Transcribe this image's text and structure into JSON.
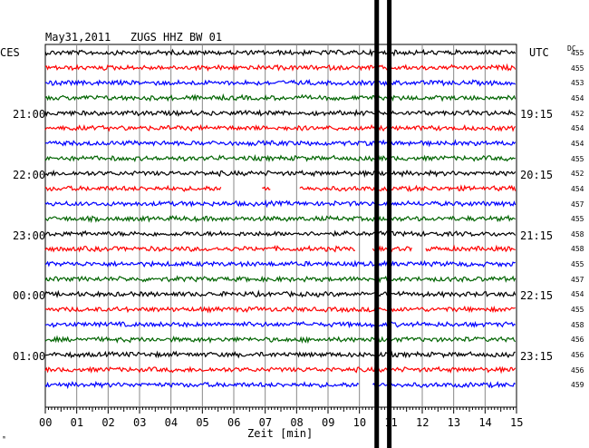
{
  "header": {
    "title": "May31,2011   ZUGS HHZ BW 01",
    "left_zone": "CES",
    "right_zone": "UTC",
    "dc_label": "DC"
  },
  "left_time_labels": [
    "21:00",
    "22:00",
    "23:00",
    "00:00",
    "01:00"
  ],
  "right_time_labels": [
    "19:15",
    "20:15",
    "21:15",
    "22:15",
    "23:15"
  ],
  "dc_values": [
    "455",
    "455",
    "453",
    "454",
    "452",
    "454",
    "454",
    "455",
    "452",
    "454",
    "457",
    "455",
    "458",
    "458",
    "455",
    "457",
    "454",
    "455",
    "458",
    "456",
    "456",
    "456",
    "459"
  ],
  "trace_colors": [
    "#000000",
    "#ff0000",
    "#0000ff",
    "#006400"
  ],
  "x_axis": {
    "ticks": [
      "00",
      "01",
      "02",
      "03",
      "04",
      "05",
      "06",
      "07",
      "08",
      "09",
      "10",
      "11",
      "12",
      "13",
      "14",
      "15"
    ],
    "label": "Zeit [min]"
  },
  "corner_mark": "ᵐ",
  "chart_data": {
    "type": "line",
    "title": "May31,2011   ZUGS HHZ BW 01",
    "xlabel": "Zeit [min]",
    "xlim": [
      0,
      15
    ],
    "traces": 23,
    "gaps_in_minutes": [
      {
        "trace": 9,
        "from": 5.6,
        "to": 6.9
      },
      {
        "trace": 9,
        "from": 7.2,
        "to": 8.1
      },
      {
        "trace": 13,
        "from": 9.9,
        "to": 10.4
      },
      {
        "trace": 13,
        "from": 11.7,
        "to": 12.1
      },
      {
        "trace": 22,
        "from": 10.0,
        "to": 10.4
      }
    ],
    "event_minutes": [
      10.55,
      10.95
    ]
  }
}
